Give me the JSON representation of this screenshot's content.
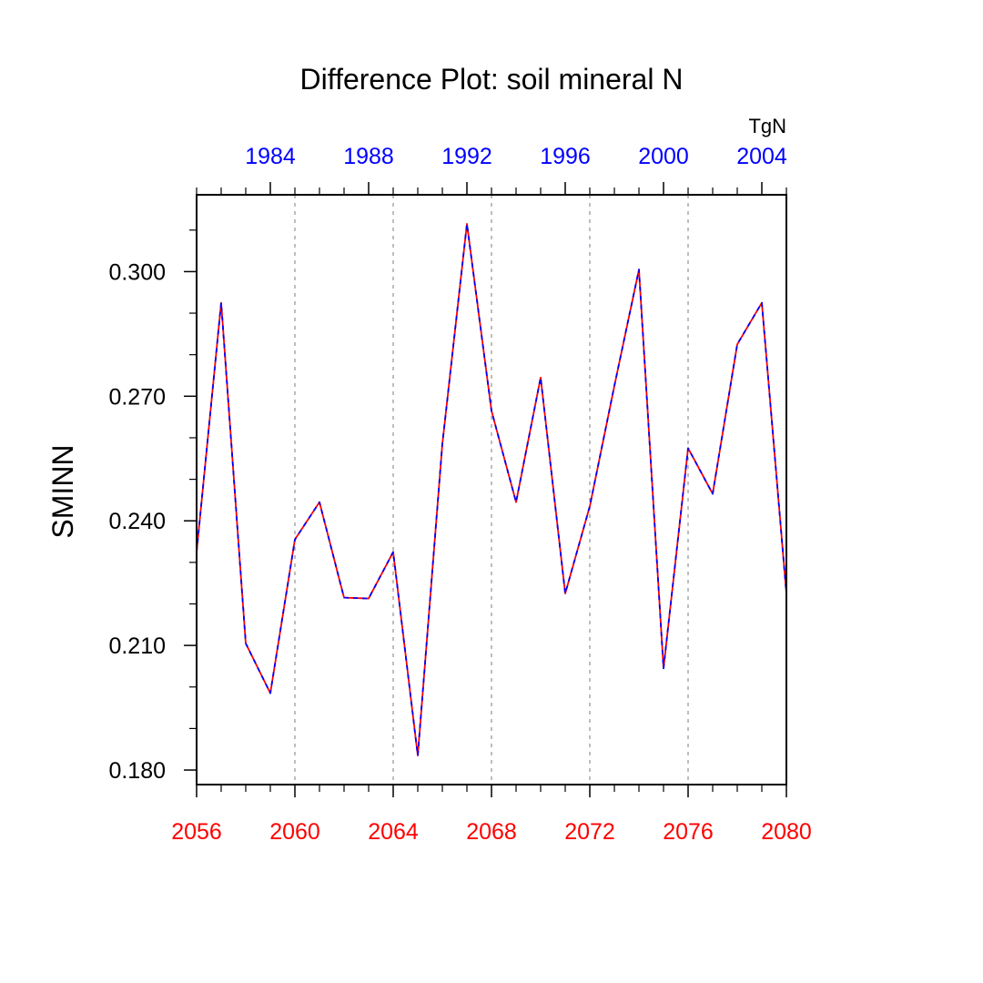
{
  "chart_data": {
    "type": "line",
    "title": "Difference Plot: soil mineral N",
    "ylabel": "SMINN",
    "xlabel": "",
    "units_label": "TgN",
    "x": [
      2056,
      2057,
      2058,
      2059,
      2060,
      2061,
      2062,
      2063,
      2064,
      2065,
      2066,
      2067,
      2068,
      2069,
      2070,
      2071,
      2072,
      2073,
      2074,
      2075,
      2076,
      2077,
      2078,
      2079,
      2080
    ],
    "xlim": [
      2056,
      2080
    ],
    "ylim": [
      0.1765,
      0.3185
    ],
    "bottom_axis": {
      "color": "#ff0000",
      "ticks": [
        2056,
        2060,
        2064,
        2068,
        2072,
        2076,
        2080
      ],
      "tick_labels": [
        "2056",
        "2060",
        "2064",
        "2068",
        "2072",
        "2076",
        "2080"
      ]
    },
    "top_axis": {
      "color": "#0000ff",
      "tick_labels": [
        "1984",
        "1988",
        "1992",
        "1996",
        "2000",
        "2004"
      ],
      "tick_positions_bottom_axis": [
        2059,
        2063,
        2067,
        2071,
        2075,
        2079
      ]
    },
    "y_axis": {
      "ticks": [
        0.18,
        0.21,
        0.24,
        0.27,
        0.3
      ],
      "tick_labels": [
        "0.180",
        "0.210",
        "0.240",
        "0.270",
        "0.300"
      ]
    },
    "vertical_gridlines_at": [
      2060,
      2064,
      2068,
      2072,
      2076
    ],
    "grid": "vertical dashed",
    "series": [
      {
        "color": "#ff0000",
        "style": "solid",
        "values": [
          0.2325,
          0.2925,
          0.2105,
          0.1985,
          0.2355,
          0.2445,
          0.2215,
          0.2213,
          0.2325,
          0.1835,
          0.2585,
          0.3115,
          0.2665,
          0.2445,
          0.2745,
          0.2225,
          0.2435,
          0.2725,
          0.3005,
          0.2045,
          0.2575,
          0.2465,
          0.2825,
          0.2925,
          0.2225
        ]
      },
      {
        "color": "#0000ff",
        "style": "dashed",
        "values": [
          0.2325,
          0.2925,
          0.2105,
          0.1985,
          0.2355,
          0.2445,
          0.2215,
          0.2213,
          0.2325,
          0.1835,
          0.2585,
          0.3115,
          0.2665,
          0.2445,
          0.2745,
          0.2225,
          0.2435,
          0.2725,
          0.3005,
          0.2045,
          0.2575,
          0.2465,
          0.2825,
          0.2925,
          0.2225
        ]
      }
    ]
  }
}
